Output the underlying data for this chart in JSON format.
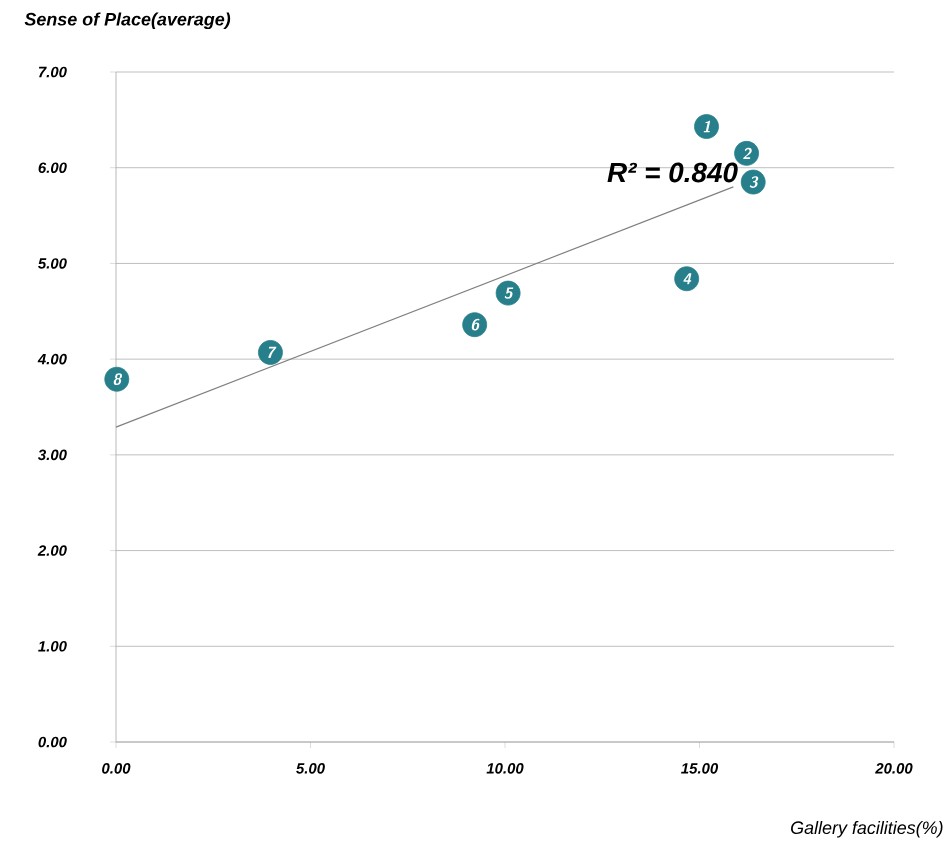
{
  "chart_data": {
    "type": "scatter",
    "title": "Sense of Place(average)",
    "xlabel": "Gallery facilities(%)",
    "series": [
      {
        "color": "#267f8a",
        "x": [
          15.18,
          16.21,
          16.38,
          14.67,
          10.08,
          9.22,
          3.97,
          0.02
        ],
        "values": [
          6.43,
          6.15,
          5.85,
          4.84,
          4.69,
          4.36,
          4.07,
          3.79
        ]
      },
      {
        "type": "line",
        "color": "#808080",
        "marker": "none",
        "x": [
          0,
          15.87
        ],
        "values": [
          3.29,
          5.8
        ]
      }
    ],
    "annotations": [
      {
        "text": "1",
        "x": 15.18,
        "y": 6.43
      },
      {
        "text": "2",
        "x": 16.21,
        "y": 6.15
      },
      {
        "text": "3",
        "x": 16.38,
        "y": 5.85
      },
      {
        "text": "4",
        "x": 14.67,
        "y": 4.84
      },
      {
        "text": "5",
        "x": 10.08,
        "y": 4.69
      },
      {
        "text": "6",
        "x": 9.22,
        "y": 4.36
      },
      {
        "text": "7",
        "x": 3.97,
        "y": 4.07
      },
      {
        "text": "8",
        "x": 0.02,
        "y": 3.79
      },
      "R² = 0.840"
    ],
    "xlim": [
      0,
      20
    ],
    "ylim": [
      0,
      7
    ],
    "xticks": [
      {
        "value": 0,
        "label": "0.00"
      },
      {
        "value": 5,
        "label": "5.00"
      },
      {
        "value": 10,
        "label": "10.00"
      },
      {
        "value": 15,
        "label": "15.00"
      },
      {
        "value": 20,
        "label": "20.00"
      }
    ],
    "yticks": [
      {
        "value": 0,
        "label": "0.00"
      },
      {
        "value": 1,
        "label": "1.00"
      },
      {
        "value": 2,
        "label": "2.00"
      },
      {
        "value": 3,
        "label": "3.00"
      },
      {
        "value": 4,
        "label": "4.00"
      },
      {
        "value": 5,
        "label": "5.00"
      },
      {
        "value": 6,
        "label": "6.00"
      },
      {
        "value": 7,
        "label": "7.00"
      }
    ],
    "grid": "y",
    "marker": "circle"
  }
}
